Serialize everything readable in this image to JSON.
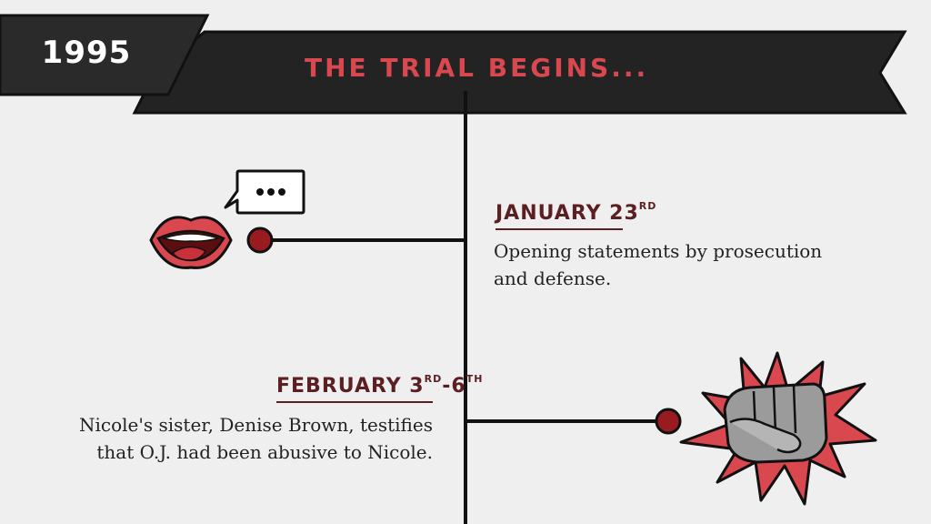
{
  "year": "1995",
  "banner": {
    "title": "THE TRIAL BEGINS..."
  },
  "events": [
    {
      "date_main": "JANUARY 23",
      "date_suffix": "RD",
      "description_lines": [
        "Opening statements by prosecution",
        "and defense."
      ],
      "icon": "speaking-mouth-icon"
    },
    {
      "date_main": "FEBRUARY 3",
      "date_suffix1": "RD",
      "date_dash": "-6",
      "date_suffix2": "TH",
      "description_lines": [
        "Nicole's sister, Denise Brown, testifies",
        "that O.J. had been abusive to Nicole."
      ],
      "icon": "punching-fist-icon"
    }
  ],
  "colors": {
    "banner": "#232323",
    "accent_red": "#d9474f",
    "dot": "#9a1b1f",
    "date_text": "#5b1f22",
    "background": "#efefef"
  }
}
